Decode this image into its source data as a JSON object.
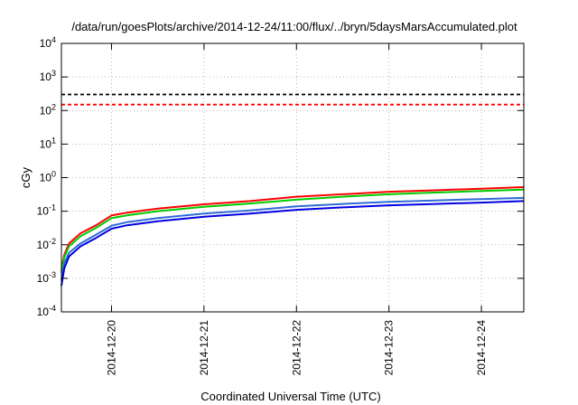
{
  "chart_data": {
    "type": "line",
    "title": "/data/run/goesPlots/archive/2014-12-24/11:00/flux/../bryn/5daysMarsAccumulated.plot",
    "xlabel": "Coordinated Universal Time (UTC)",
    "ylabel": "cGy",
    "y_scale": "log",
    "ylim": [
      0.0001,
      10000
    ],
    "y_ticks": [
      {
        "value": 0.0001,
        "base": "10",
        "exp": "-4"
      },
      {
        "value": 0.001,
        "base": "10",
        "exp": "-3"
      },
      {
        "value": 0.01,
        "base": "10",
        "exp": "-2"
      },
      {
        "value": 0.1,
        "base": "10",
        "exp": "-1"
      },
      {
        "value": 1,
        "base": "10",
        "exp": "0"
      },
      {
        "value": 10,
        "base": "10",
        "exp": "1"
      },
      {
        "value": 100,
        "base": "10",
        "exp": "2"
      },
      {
        "value": 1000,
        "base": "10",
        "exp": "3"
      },
      {
        "value": 10000,
        "base": "10",
        "exp": "4"
      }
    ],
    "xlim": [
      "2014-12-19 11:00",
      "2014-12-24 11:00"
    ],
    "x_ticks": [
      "2014-12-20",
      "2014-12-21",
      "2014-12-22",
      "2014-12-23",
      "2014-12-24"
    ],
    "x_tick_label_rotation": "vertical",
    "grid": true,
    "grid_style": "dotted",
    "legend": "none",
    "series": [
      {
        "color": "#000000",
        "style": "dashed",
        "points": [
          [
            "2014-12-19 11:00",
            300
          ],
          [
            "2014-12-24 11:00",
            300
          ]
        ]
      },
      {
        "color": "#ff0000",
        "style": "dashed",
        "points": [
          [
            "2014-12-19 11:00",
            150
          ],
          [
            "2014-12-24 11:00",
            150
          ]
        ]
      },
      {
        "color": "#ff0000",
        "style": "solid",
        "points": [
          [
            "2014-12-19 11:00",
            0.0018
          ],
          [
            "2014-12-19 11:45",
            0.005
          ],
          [
            "2014-12-19 13:00",
            0.011
          ],
          [
            "2014-12-19 16:00",
            0.022
          ],
          [
            "2014-12-19 20:00",
            0.038
          ],
          [
            "2014-12-20 00:00",
            0.075
          ],
          [
            "2014-12-20 04:00",
            0.09
          ],
          [
            "2014-12-20 12:00",
            0.12
          ],
          [
            "2014-12-21 00:00",
            0.16
          ],
          [
            "2014-12-21 12:00",
            0.2
          ],
          [
            "2014-12-22 00:00",
            0.27
          ],
          [
            "2014-12-22 12:00",
            0.32
          ],
          [
            "2014-12-23 00:00",
            0.38
          ],
          [
            "2014-12-23 12:00",
            0.42
          ],
          [
            "2014-12-24 00:00",
            0.47
          ],
          [
            "2014-12-24 11:00",
            0.52
          ]
        ]
      },
      {
        "color": "#00cc00",
        "style": "solid",
        "points": [
          [
            "2014-12-19 11:00",
            0.0015
          ],
          [
            "2014-12-19 11:45",
            0.0042
          ],
          [
            "2014-12-19 13:00",
            0.009
          ],
          [
            "2014-12-19 16:00",
            0.018
          ],
          [
            "2014-12-19 20:00",
            0.032
          ],
          [
            "2014-12-20 00:00",
            0.062
          ],
          [
            "2014-12-20 04:00",
            0.075
          ],
          [
            "2014-12-20 12:00",
            0.1
          ],
          [
            "2014-12-21 00:00",
            0.135
          ],
          [
            "2014-12-21 12:00",
            0.17
          ],
          [
            "2014-12-22 00:00",
            0.22
          ],
          [
            "2014-12-22 12:00",
            0.27
          ],
          [
            "2014-12-23 00:00",
            0.32
          ],
          [
            "2014-12-23 12:00",
            0.36
          ],
          [
            "2014-12-24 00:00",
            0.4
          ],
          [
            "2014-12-24 11:00",
            0.44
          ]
        ]
      },
      {
        "color": "#2e6bd6",
        "style": "solid",
        "points": [
          [
            "2014-12-19 11:00",
            0.0009
          ],
          [
            "2014-12-19 11:45",
            0.0028
          ],
          [
            "2014-12-19 13:00",
            0.0058
          ],
          [
            "2014-12-19 16:00",
            0.011
          ],
          [
            "2014-12-19 20:00",
            0.02
          ],
          [
            "2014-12-20 00:00",
            0.037
          ],
          [
            "2014-12-20 04:00",
            0.047
          ],
          [
            "2014-12-20 12:00",
            0.062
          ],
          [
            "2014-12-21 00:00",
            0.085
          ],
          [
            "2014-12-21 12:00",
            0.105
          ],
          [
            "2014-12-22 00:00",
            0.14
          ],
          [
            "2014-12-22 12:00",
            0.165
          ],
          [
            "2014-12-23 00:00",
            0.19
          ],
          [
            "2014-12-23 12:00",
            0.21
          ],
          [
            "2014-12-24 00:00",
            0.23
          ],
          [
            "2014-12-24 11:00",
            0.25
          ]
        ]
      },
      {
        "color": "#0000e0",
        "style": "solid",
        "points": [
          [
            "2014-12-19 11:00",
            0.0006
          ],
          [
            "2014-12-19 11:45",
            0.002
          ],
          [
            "2014-12-19 13:00",
            0.0045
          ],
          [
            "2014-12-19 16:00",
            0.009
          ],
          [
            "2014-12-19 20:00",
            0.016
          ],
          [
            "2014-12-20 00:00",
            0.03
          ],
          [
            "2014-12-20 04:00",
            0.038
          ],
          [
            "2014-12-20 12:00",
            0.05
          ],
          [
            "2014-12-21 00:00",
            0.068
          ],
          [
            "2014-12-21 12:00",
            0.085
          ],
          [
            "2014-12-22 00:00",
            0.11
          ],
          [
            "2014-12-22 12:00",
            0.13
          ],
          [
            "2014-12-23 00:00",
            0.15
          ],
          [
            "2014-12-23 12:00",
            0.165
          ],
          [
            "2014-12-24 00:00",
            0.18
          ],
          [
            "2014-12-24 11:00",
            0.2
          ]
        ]
      }
    ]
  }
}
